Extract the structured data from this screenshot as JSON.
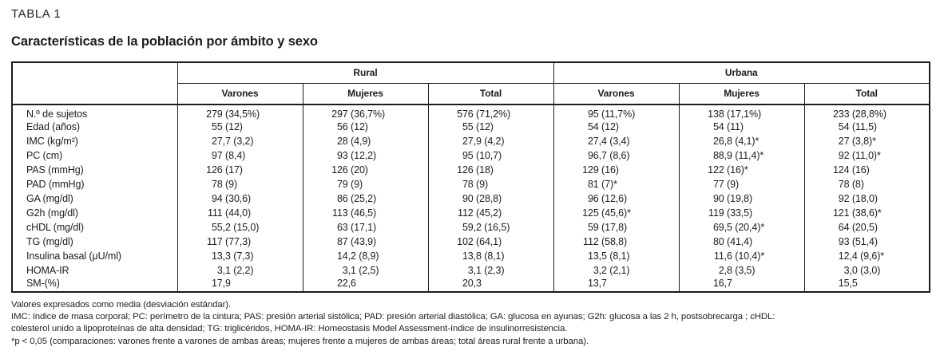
{
  "page": {
    "table_label": "TABLA 1",
    "title": "Características de la población por ámbito y sexo"
  },
  "table": {
    "groups": [
      {
        "label": "Rural"
      },
      {
        "label": "Urbana"
      }
    ],
    "sub_headers": [
      "Varones",
      "Mujeres",
      "Total",
      "Varones",
      "Mujeres",
      "Total"
    ],
    "rows": [
      {
        "label": "N.º de sujetos",
        "values": [
          "279 (34,5%)",
          "297 (36,7%)",
          "576 (71,2%)",
          "95 (11,7%)",
          "138 (17,1%)",
          "233 (28,8%)"
        ]
      },
      {
        "label": "Edad (años)",
        "values": [
          "55 (12)",
          "56 (12)",
          "55 (12)",
          "54 (12)",
          "54 (11)",
          "54 (11,5)"
        ]
      },
      {
        "label": "IMC (kg/m²)",
        "values": [
          "27,7 (3,2)",
          "28 (4,9)",
          "27,9 (4,2)",
          "27,4 (3,4)",
          "26,8 (4,1)*",
          "27 (3,8)*"
        ]
      },
      {
        "label": "PC (cm)",
        "values": [
          "97 (8,4)",
          "93 (12,2)",
          "95 (10,7)",
          "96,7 (8,6)",
          "88,9 (11,4)*",
          "92 (11,0)*"
        ]
      },
      {
        "label": "PAS (mmHg)",
        "values": [
          "126 (17)",
          "126 (20)",
          "126 (18)",
          "129 (16)",
          "122 (16)*",
          "124 (16)"
        ]
      },
      {
        "label": "PAD (mmHg)",
        "values": [
          "78 (9)",
          "79 (9)",
          "78 (9)",
          "81 (7)*",
          "77 (9)",
          "78 (8)"
        ]
      },
      {
        "label": "GA (mg/dl)",
        "values": [
          "94 (30,6)",
          "86 (25,2)",
          "90 (28,8)",
          "96 (12,6)",
          "90 (19,8)",
          "92 (18,0)"
        ]
      },
      {
        "label": "G2h (mg/dl)",
        "values": [
          "111 (44,0)",
          "113 (46,5)",
          "112 (45,2)",
          "125 (45,6)*",
          "119 (33,5)",
          "121 (38,6)*"
        ]
      },
      {
        "label": "cHDL (mg/dl)",
        "values": [
          "55,2 (15,0)",
          "63 (17,1)",
          "59,2 (16,5)",
          "59 (17,8)",
          "69,5 (20,4)*",
          "64 (20,5)"
        ]
      },
      {
        "label": "TG (mg/dl)",
        "values": [
          "117 (77,3)",
          "87 (43,9)",
          "102 (64,1)",
          "112 (58,8)",
          "80 (41,4)",
          "93 (51,4)"
        ]
      },
      {
        "label": "Insulina basal (μU/ml)",
        "values": [
          "13,3 (7,3)",
          "14,2 (8,9)",
          "13,8 (8,1)",
          "13,5 (8,1)",
          "11,6 (10,4)*",
          "12,4 (9,6)*"
        ]
      },
      {
        "label": "HOMA-IR",
        "values": [
          "3,1 (2,2)",
          "3,1 (2,5)",
          "3,1 (2,3)",
          "3,2 (2,1)",
          "2,8 (3,5)",
          "3,0 (3,0)"
        ]
      },
      {
        "label": "SM-(%)",
        "values": [
          "17,9",
          "22,6",
          "20,3",
          "13,7",
          "16,7",
          "15,5"
        ]
      }
    ],
    "footnotes": [
      "Valores expresados como media (desviación estándar).",
      "IMC: índice de masa corporal; PC: perímetro de la cintura; PAS: presión arterial sistólica; PAD: presión arterial diastólica; GA: glucosa en ayunas; G2h: glucosa a las 2 h, postsobrecarga ; cHDL:",
      "colesterol unido a lipoproteínas de alta densidad; TG: triglicéridos, HOMA-IR: Homeostasis Model Assessment-índice de insulinorresistencia.",
      "*p < 0,05 (comparaciones: varones frente a varones de ambas áreas; mujeres frente a mujeres de ambas áreas; total áreas rural frente a urbana)."
    ]
  }
}
